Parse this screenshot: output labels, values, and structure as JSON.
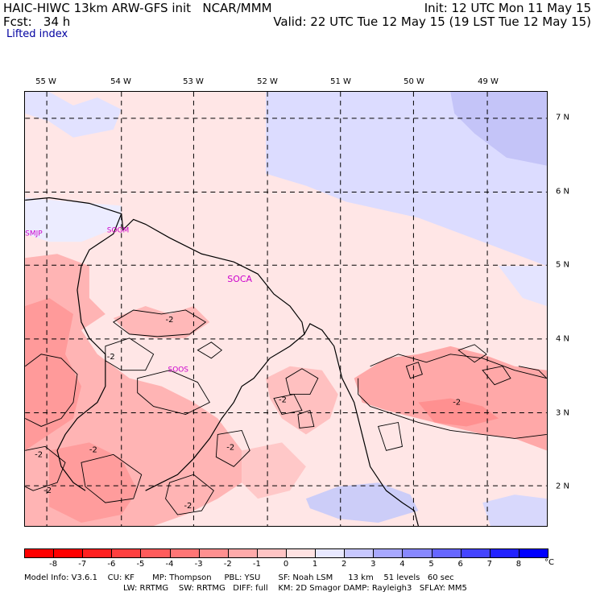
{
  "header": {
    "title": "HAIC-HIWC 13km ARW-GFS init   NCAR/MMM",
    "fcst": "Fcst:   34 h",
    "field": "Lifted index",
    "init": "Init: 12 UTC Mon 11 May 15",
    "valid": "Valid: 22 UTC Tue 12 May 15 (19 LST Tue 12 May 15)"
  },
  "map": {
    "lon_labels": [
      "55 W",
      "54 W",
      "53 W",
      "52 W",
      "51 W",
      "50 W",
      "49 W"
    ],
    "lat_labels": [
      "7 N",
      "6 N",
      "5 N",
      "4 N",
      "3 N",
      "2 N"
    ],
    "stations": [
      "SMJP",
      "SOGM",
      "SOCA",
      "SOOS"
    ],
    "contour_label": "-2"
  },
  "colorbar": {
    "ticks": [
      "-8",
      "-7",
      "-6",
      "-5",
      "-4",
      "-3",
      "-2",
      "-1",
      "0",
      "1",
      "2",
      "3",
      "4",
      "5",
      "6",
      "7",
      "8"
    ],
    "unit": "°C",
    "colors": [
      "#ff0000",
      "#ff2020",
      "#ff4040",
      "#ff5c5c",
      "#ff7676",
      "#ff9090",
      "#ffaaaa",
      "#ffc4c4",
      "#ffe2e2",
      "#e8e8ff",
      "#c8c8ff",
      "#a8a8ff",
      "#8888ff",
      "#6666ff",
      "#4444ff",
      "#2222ff",
      "#0000ff"
    ]
  },
  "footer": {
    "line1": "Model Info: V3.6.1    CU: KF       MP: Thompson     PBL: YSU       SF: Noah LSM      13 km    51 levels   60 sec",
    "line2": "LW: RRTMG    SW: RRTMG   DIFF: full    KM: 2D Smagor DAMP: Rayleigh3   SFLAY: MM5"
  }
}
